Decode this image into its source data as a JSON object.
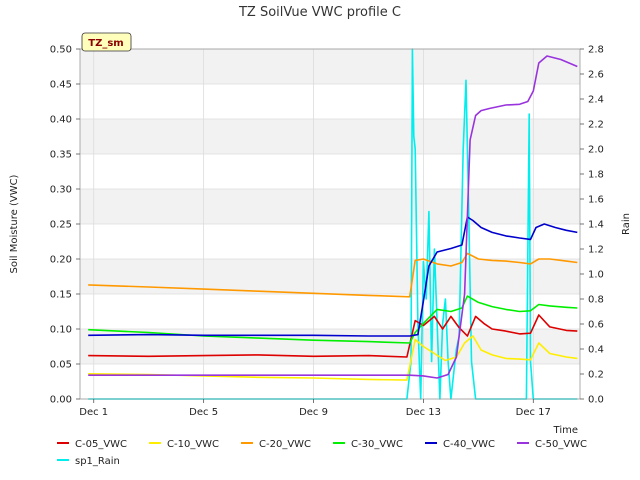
{
  "chart_data": {
    "type": "line",
    "title": "TZ SoilVue VWC profile C",
    "site_tag": "TZ_sm",
    "xlabel": "Time",
    "ylabel": "Soil Moisture (VWC)",
    "y2label": "Rain",
    "x_unit": "days (December)",
    "xlim": [
      0.5,
      18.7
    ],
    "ylim": [
      0,
      0.5
    ],
    "y2lim": [
      0,
      2.8
    ],
    "x_ticks": [
      1,
      5,
      9,
      13,
      17
    ],
    "x_tick_labels": [
      "Dec 1",
      "Dec 5",
      "Dec 9",
      "Dec 13",
      "Dec 17"
    ],
    "y_ticks": [
      "0.00",
      "0.05",
      "0.10",
      "0.15",
      "0.20",
      "0.25",
      "0.30",
      "0.35",
      "0.40",
      "0.45",
      "0.50"
    ],
    "y2_ticks": [
      "0.0",
      "0.2",
      "0.4",
      "0.6",
      "0.8",
      "1.0",
      "1.2",
      "1.4",
      "1.6",
      "1.8",
      "2.0",
      "2.2",
      "2.4",
      "2.6",
      "2.8"
    ],
    "grid": true,
    "background": "alternating gray bands",
    "legend_position": "bottom",
    "series": [
      {
        "name": "C-05_VWC",
        "axis": "left",
        "color": "#dd0000",
        "x": [
          0.8,
          3,
          5,
          7,
          9,
          11,
          12.4,
          12.7,
          13.0,
          13.4,
          13.7,
          14.0,
          14.3,
          14.6,
          14.9,
          15.2,
          15.5,
          16.0,
          16.5,
          16.9,
          17.2,
          17.6,
          18.2,
          18.6
        ],
        "y": [
          0.062,
          0.061,
          0.062,
          0.063,
          0.061,
          0.062,
          0.06,
          0.112,
          0.105,
          0.118,
          0.1,
          0.118,
          0.102,
          0.09,
          0.118,
          0.108,
          0.1,
          0.097,
          0.093,
          0.094,
          0.12,
          0.103,
          0.098,
          0.097
        ]
      },
      {
        "name": "C-10_VWC",
        "axis": "left",
        "color": "#ffee00",
        "x": [
          0.8,
          3,
          5,
          7,
          9,
          11,
          12.4,
          12.7,
          13.0,
          13.4,
          13.8,
          14.2,
          14.5,
          14.8,
          15.1,
          15.5,
          16.0,
          16.5,
          16.9,
          17.2,
          17.6,
          18.2,
          18.6
        ],
        "y": [
          0.036,
          0.035,
          0.033,
          0.031,
          0.03,
          0.028,
          0.027,
          0.085,
          0.075,
          0.065,
          0.055,
          0.06,
          0.08,
          0.09,
          0.07,
          0.063,
          0.058,
          0.057,
          0.056,
          0.08,
          0.065,
          0.06,
          0.058
        ]
      },
      {
        "name": "C-20_VWC",
        "axis": "left",
        "color": "#ff9900",
        "x": [
          0.8,
          3,
          5,
          7,
          9,
          11,
          12.5,
          12.7,
          13.0,
          13.5,
          14.0,
          14.4,
          14.6,
          15.0,
          15.5,
          16.0,
          16.5,
          16.9,
          17.2,
          17.6,
          18.2,
          18.6
        ],
        "y": [
          0.163,
          0.16,
          0.157,
          0.154,
          0.151,
          0.148,
          0.146,
          0.198,
          0.2,
          0.193,
          0.19,
          0.195,
          0.208,
          0.2,
          0.198,
          0.197,
          0.195,
          0.193,
          0.2,
          0.2,
          0.197,
          0.195
        ]
      },
      {
        "name": "C-30_VWC",
        "axis": "left",
        "color": "#00ee00",
        "x": [
          0.8,
          3,
          5,
          7,
          9,
          11,
          12.5,
          12.7,
          13.0,
          13.5,
          14.0,
          14.4,
          14.6,
          15.0,
          15.5,
          16.0,
          16.5,
          16.9,
          17.2,
          17.6,
          18.2,
          18.6
        ],
        "y": [
          0.099,
          0.095,
          0.09,
          0.087,
          0.084,
          0.082,
          0.08,
          0.095,
          0.108,
          0.128,
          0.125,
          0.13,
          0.147,
          0.138,
          0.132,
          0.128,
          0.125,
          0.126,
          0.135,
          0.133,
          0.131,
          0.13
        ]
      },
      {
        "name": "C-40_VWC",
        "axis": "left",
        "color": "#0000cc",
        "x": [
          0.8,
          3,
          5,
          7,
          9,
          11,
          12.5,
          12.8,
          13.0,
          13.2,
          13.5,
          14.0,
          14.4,
          14.6,
          14.8,
          15.1,
          15.5,
          16.0,
          16.5,
          16.9,
          17.1,
          17.4,
          17.8,
          18.2,
          18.6
        ],
        "y": [
          0.091,
          0.092,
          0.091,
          0.091,
          0.091,
          0.09,
          0.09,
          0.092,
          0.14,
          0.19,
          0.21,
          0.215,
          0.22,
          0.26,
          0.255,
          0.245,
          0.238,
          0.233,
          0.23,
          0.228,
          0.245,
          0.25,
          0.245,
          0.241,
          0.238
        ]
      },
      {
        "name": "C-50_VWC",
        "axis": "left",
        "color": "#9933dd",
        "x": [
          0.8,
          3,
          5,
          7,
          9,
          11,
          12.5,
          13.0,
          13.5,
          13.9,
          14.2,
          14.5,
          14.7,
          14.9,
          15.1,
          15.4,
          16.0,
          16.5,
          16.8,
          17.0,
          17.2,
          17.5,
          18.0,
          18.6
        ],
        "y": [
          0.034,
          0.034,
          0.034,
          0.034,
          0.034,
          0.034,
          0.034,
          0.033,
          0.03,
          0.035,
          0.06,
          0.15,
          0.37,
          0.405,
          0.412,
          0.415,
          0.42,
          0.421,
          0.425,
          0.44,
          0.48,
          0.49,
          0.485,
          0.475
        ]
      },
      {
        "name": "sp1_Rain",
        "axis": "right",
        "color": "#00eeee",
        "x": [
          0.8,
          12.4,
          12.55,
          12.6,
          12.65,
          12.7,
          12.8,
          12.9,
          13.0,
          13.1,
          13.2,
          13.3,
          13.4,
          13.6,
          13.7,
          13.8,
          13.9,
          14.0,
          14.1,
          14.2,
          14.3,
          14.45,
          14.55,
          14.65,
          14.75,
          14.9,
          16.75,
          16.85,
          16.9,
          17.0,
          18.6
        ],
        "y": [
          0,
          0,
          0.3,
          2.8,
          2.1,
          2.0,
          0.6,
          0,
          1.1,
          0.8,
          1.5,
          0.3,
          1.2,
          0,
          0.6,
          0.8,
          0.3,
          0,
          0.2,
          0.4,
          0.5,
          2.0,
          2.55,
          1.5,
          0.3,
          0,
          0,
          2.28,
          0.3,
          0,
          0
        ]
      }
    ]
  }
}
